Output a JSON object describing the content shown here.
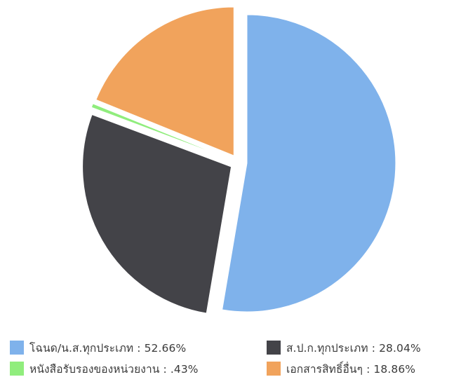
{
  "chart_data": {
    "type": "pie",
    "title": "",
    "legend_position": "bottom",
    "slices": [
      {
        "label": "โฉนด/น.ส.ทุกประเภท",
        "value": 52.66,
        "legend_text": "โฉนด/น.ส.ทุกประเภท : 52.66%",
        "color": "#7fb2eb"
      },
      {
        "label": "ส.ป.ก.ทุกประเภท",
        "value": 28.04,
        "legend_text": "ส.ป.ก.ทุกประเภท : 28.04%",
        "color": "#434348"
      },
      {
        "label": "หนังสือรับรองของหน่วยงาน",
        "value": 0.43,
        "legend_text": "หนังสือรับรองของหน่วยงาน : .43%",
        "color": "#90ed7d"
      },
      {
        "label": "เอกสารสิทธิ์อื่นๆ",
        "value": 18.86,
        "legend_text": "เอกสารสิทธิ์อื่นๆ : 18.86%",
        "color": "#f1a35c"
      }
    ]
  }
}
